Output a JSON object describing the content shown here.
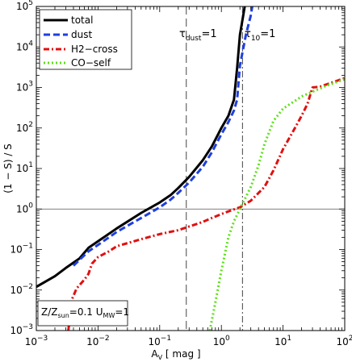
{
  "chart_data": {
    "type": "line",
    "xlabel": {
      "main": "A",
      "sub": "V",
      "rest": " [ mag ]"
    },
    "ylabel": "(1 − S) / S",
    "xscale": "log",
    "yscale": "log",
    "xlim": [
      0.001,
      100
    ],
    "ylim": [
      0.001,
      100000
    ],
    "x_ticks": [
      {
        "base": "10",
        "exp": "−3",
        "value": 0.001
      },
      {
        "base": "10",
        "exp": "−2",
        "value": 0.01
      },
      {
        "base": "10",
        "exp": "−1",
        "value": 0.1
      },
      {
        "base": "10",
        "exp": "0",
        "value": 1
      },
      {
        "base": "10",
        "exp": "1",
        "value": 10
      },
      {
        "base": "10",
        "exp": "2",
        "value": 100
      }
    ],
    "y_ticks": [
      {
        "base": "10",
        "exp": "−3",
        "value": 0.001
      },
      {
        "base": "10",
        "exp": "−2",
        "value": 0.01
      },
      {
        "base": "10",
        "exp": "−1",
        "value": 0.1
      },
      {
        "base": "10",
        "exp": "0",
        "value": 1
      },
      {
        "base": "10",
        "exp": "1",
        "value": 10
      },
      {
        "base": "10",
        "exp": "2",
        "value": 100
      },
      {
        "base": "10",
        "exp": "3",
        "value": 1000
      },
      {
        "base": "10",
        "exp": "4",
        "value": 10000
      },
      {
        "base": "10",
        "exp": "5",
        "value": 100000
      }
    ],
    "legend_position": "top-left",
    "series": [
      {
        "name": "total",
        "color": "#000000",
        "style": "solid",
        "points": [
          [
            0.001,
            0.012
          ],
          [
            0.002,
            0.022
          ],
          [
            0.003,
            0.035
          ],
          [
            0.005,
            0.06
          ],
          [
            0.007,
            0.11
          ],
          [
            0.01,
            0.16
          ],
          [
            0.02,
            0.33
          ],
          [
            0.05,
            0.8
          ],
          [
            0.1,
            1.45
          ],
          [
            0.15,
            2.2
          ],
          [
            0.2,
            3.3
          ],
          [
            0.3,
            6.2
          ],
          [
            0.5,
            16
          ],
          [
            0.7,
            35
          ],
          [
            1.0,
            100
          ],
          [
            1.3,
            200
          ],
          [
            1.6,
            500
          ],
          [
            1.8,
            3000
          ],
          [
            2.0,
            20000
          ],
          [
            2.3,
            70000
          ],
          [
            2.5,
            150000
          ]
        ]
      },
      {
        "name": "dust",
        "color": "#1f3fe0",
        "style": "dashed",
        "points": [
          [
            0.004,
            0.04
          ],
          [
            0.007,
            0.09
          ],
          [
            0.01,
            0.13
          ],
          [
            0.02,
            0.27
          ],
          [
            0.05,
            0.6
          ],
          [
            0.1,
            1.1
          ],
          [
            0.15,
            1.7
          ],
          [
            0.2,
            2.5
          ],
          [
            0.3,
            4.5
          ],
          [
            0.5,
            11
          ],
          [
            0.7,
            25
          ],
          [
            1.0,
            70
          ],
          [
            1.3,
            140
          ],
          [
            1.6,
            270
          ],
          [
            1.8,
            500
          ],
          [
            2.0,
            3500
          ],
          [
            2.5,
            20000
          ],
          [
            3.0,
            60000
          ],
          [
            3.3,
            150000
          ]
        ]
      },
      {
        "name": "H2−cross",
        "color": "#e01010",
        "style": "dashdot",
        "points": [
          [
            0.0033,
            0.001
          ],
          [
            0.0038,
            0.006
          ],
          [
            0.0045,
            0.011
          ],
          [
            0.006,
            0.018
          ],
          [
            0.007,
            0.025
          ],
          [
            0.008,
            0.045
          ],
          [
            0.01,
            0.065
          ],
          [
            0.015,
            0.09
          ],
          [
            0.02,
            0.12
          ],
          [
            0.05,
            0.18
          ],
          [
            0.1,
            0.24
          ],
          [
            0.2,
            0.3
          ],
          [
            0.3,
            0.37
          ],
          [
            0.5,
            0.48
          ],
          [
            0.7,
            0.6
          ],
          [
            1.0,
            0.75
          ],
          [
            1.5,
            0.95
          ],
          [
            2.0,
            1.1
          ],
          [
            3.0,
            1.6
          ],
          [
            5.0,
            3.5
          ],
          [
            7.0,
            9
          ],
          [
            10,
            30
          ],
          [
            15,
            90
          ],
          [
            20,
            200
          ],
          [
            25,
            400
          ],
          [
            30,
            1000
          ],
          [
            40,
            1050
          ],
          [
            60,
            1300
          ],
          [
            100,
            1700
          ]
        ]
      },
      {
        "name": "CO−self",
        "color": "#5fe01a",
        "style": "dotted",
        "points": [
          [
            0.65,
            0.001
          ],
          [
            0.8,
            0.005
          ],
          [
            1.0,
            0.03
          ],
          [
            1.3,
            0.2
          ],
          [
            1.6,
            0.5
          ],
          [
            2.0,
            1.0
          ],
          [
            3.0,
            3.5
          ],
          [
            4.0,
            12
          ],
          [
            5.0,
            40
          ],
          [
            7.0,
            150
          ],
          [
            10,
            300
          ],
          [
            20,
            600
          ],
          [
            50,
            1100
          ],
          [
            100,
            1600
          ]
        ]
      }
    ],
    "reference_lines": [
      {
        "axis": "x",
        "value": 0.27,
        "style": "dashed",
        "label": {
          "main": "τ",
          "sub": "dust",
          "rest": "=1"
        }
      },
      {
        "axis": "x",
        "value": 2.2,
        "style": "dashdot",
        "label": {
          "main": "τ",
          "sub": "10",
          "rest": "=1"
        }
      },
      {
        "axis": "y",
        "value": 1,
        "style": "solid"
      }
    ],
    "annotation": {
      "p1": "Z/Z",
      "s1": "sun",
      "p2": "=0.1 U",
      "s2": "MW",
      "p3": "=1"
    }
  }
}
